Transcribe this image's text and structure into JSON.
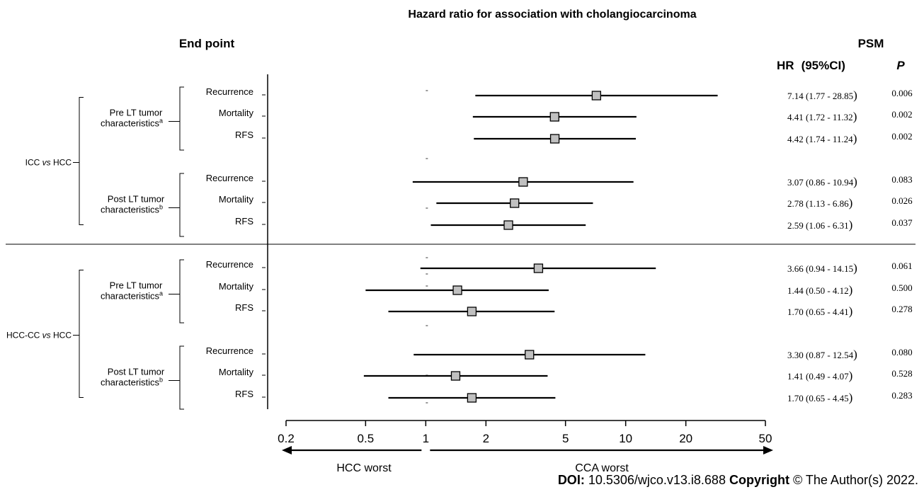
{
  "chart_data": {
    "type": "forest",
    "title": "Hazard ratio for association with cholangiocarcinoma",
    "column_headers": {
      "endpoint": "End point",
      "psm": "PSM",
      "hr": "HR",
      "ci": "(95%CI)",
      "p": "P"
    },
    "x_axis": {
      "scale": "log",
      "range": [
        0.2,
        50
      ],
      "ticks": [
        0.2,
        0.5,
        1,
        2,
        5,
        10,
        20,
        50
      ],
      "tick_labels": [
        "0.2",
        "0.5",
        "1",
        "2",
        "5",
        "10",
        "20",
        "50"
      ],
      "left_label": "HCC worst",
      "right_label": "CCA  worst"
    },
    "comparisons": [
      {
        "label_pre": "ICC ",
        "label_vs": "vs",
        "label_post": " HCC",
        "groups": [
          {
            "label_line1": "Pre LT tumor",
            "label_line2": "characteristics",
            "label_sup": "a",
            "rows": [
              {
                "endpoint": "Recurrence",
                "hr": 7.14,
                "lo": 1.77,
                "hi": 28.85,
                "hr_text": "7.14 (1.77 - 28.85",
                "p": "0.006"
              },
              {
                "endpoint": "Mortality",
                "hr": 4.41,
                "lo": 1.72,
                "hi": 11.32,
                "hr_text": "4.41 (1.72 - 11.32",
                "p": "0.002"
              },
              {
                "endpoint": "RFS",
                "hr": 4.42,
                "lo": 1.74,
                "hi": 11.24,
                "hr_text": "4.42 (1.74 - 11.24",
                "p": "0.002"
              }
            ]
          },
          {
            "label_line1": "Post LT tumor",
            "label_line2": "characteristics",
            "label_sup": "b",
            "rows": [
              {
                "endpoint": "Recurrence",
                "hr": 3.07,
                "lo": 0.86,
                "hi": 10.94,
                "hr_text": "3.07 (0.86 - 10.94",
                "p": "0.083"
              },
              {
                "endpoint": "Mortality",
                "hr": 2.78,
                "lo": 1.13,
                "hi": 6.86,
                "hr_text": "2.78 (1.13 - 6.86",
                "p": "0.026"
              },
              {
                "endpoint": "RFS",
                "hr": 2.59,
                "lo": 1.06,
                "hi": 6.31,
                "hr_text": "2.59 (1.06 - 6.31",
                "p": "0.037"
              }
            ]
          }
        ]
      },
      {
        "label_pre": "HCC-CC ",
        "label_vs": "vs",
        "label_post": " HCC",
        "groups": [
          {
            "label_line1": "Pre LT tumor",
            "label_line2": "characteristics",
            "label_sup": "a",
            "rows": [
              {
                "endpoint": "Recurrence",
                "hr": 3.66,
                "lo": 0.94,
                "hi": 14.15,
                "hr_text": "3.66 (0.94 - 14.15",
                "p": "0.061"
              },
              {
                "endpoint": "Mortality",
                "hr": 1.44,
                "lo": 0.5,
                "hi": 4.12,
                "hr_text": "1.44 (0.50 - 4.12",
                "p": "0.500"
              },
              {
                "endpoint": "RFS",
                "hr": 1.7,
                "lo": 0.65,
                "hi": 4.41,
                "hr_text": "1.70 (0.65 - 4.41",
                "p": "0.278"
              }
            ]
          },
          {
            "label_line1": "Post LT tumor",
            "label_line2": "characteristics",
            "label_sup": "b",
            "rows": [
              {
                "endpoint": "Recurrence",
                "hr": 3.3,
                "lo": 0.87,
                "hi": 12.54,
                "hr_text": "3.30 (0.87 - 12.54",
                "p": "0.080"
              },
              {
                "endpoint": "Mortality",
                "hr": 1.41,
                "lo": 0.49,
                "hi": 4.07,
                "hr_text": "1.41 (0.49 - 4.07",
                "p": "0.528"
              },
              {
                "endpoint": "RFS",
                "hr": 1.7,
                "lo": 0.65,
                "hi": 4.45,
                "hr_text": "1.70 (0.65 - 4.45",
                "p": "0.283"
              }
            ]
          }
        ]
      }
    ]
  },
  "footer": {
    "doi_label": "DOI:",
    "doi_value": " 10.5306/wjco.v13.i8.688  ",
    "copyright_label": "Copyright",
    "copyright_value": " © The Author(s) 2022."
  }
}
